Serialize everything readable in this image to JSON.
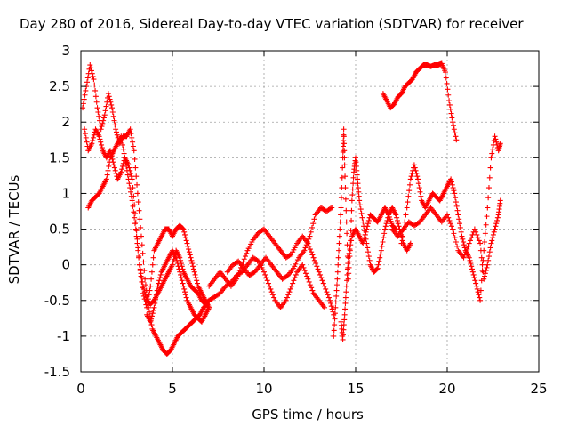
{
  "chart_data": {
    "type": "scatter",
    "title": "Day 280 of 2016, Sidereal Day-to-day VTEC variation (SDTVAR) for receiver",
    "xlabel": "GPS time / hours",
    "ylabel": "SDTVAR / TECUs",
    "xlim": [
      0,
      25
    ],
    "ylim": [
      -1.5,
      3
    ],
    "xticks": [
      "0",
      "5",
      "10",
      "15",
      "20",
      "25"
    ],
    "yticks": [
      "-1.5",
      "-1",
      "-0.5",
      "0",
      "0.5",
      "1",
      "1.5",
      "2",
      "2.5",
      "3"
    ],
    "grid": true,
    "marker": "+",
    "color": "#ff0000",
    "series": [
      {
        "values": [
          [
            0.1,
            2.2
          ],
          [
            0.3,
            2.5
          ],
          [
            0.5,
            2.8
          ],
          [
            0.7,
            2.6
          ],
          [
            0.9,
            2.2
          ],
          [
            1.1,
            1.9
          ],
          [
            1.3,
            2.1
          ],
          [
            1.5,
            2.4
          ],
          [
            1.7,
            2.2
          ],
          [
            1.9,
            1.9
          ],
          [
            2.1,
            1.7
          ],
          [
            2.3,
            1.8
          ],
          [
            2.5,
            1.8
          ],
          [
            2.7,
            1.9
          ],
          [
            2.9,
            1.6
          ],
          [
            3.1,
            1.0
          ],
          [
            3.3,
            0.4
          ],
          [
            3.5,
            -0.2
          ],
          [
            3.7,
            -0.6
          ],
          [
            3.9,
            -0.9
          ],
          [
            4.1,
            -1.0
          ],
          [
            4.3,
            -1.1
          ],
          [
            4.5,
            -1.2
          ],
          [
            4.7,
            -1.25
          ],
          [
            4.9,
            -1.2
          ],
          [
            5.1,
            -1.1
          ],
          [
            5.3,
            -1.0
          ],
          [
            5.5,
            -0.95
          ],
          [
            5.7,
            -0.9
          ],
          [
            5.9,
            -0.85
          ],
          [
            6.1,
            -0.8
          ],
          [
            6.3,
            -0.75
          ],
          [
            6.5,
            -0.7
          ],
          [
            6.7,
            -0.6
          ],
          [
            6.9,
            -0.55
          ]
        ]
      },
      {
        "values": [
          [
            0.2,
            1.9
          ],
          [
            0.4,
            1.6
          ],
          [
            0.6,
            1.7
          ],
          [
            0.8,
            1.9
          ],
          [
            1.0,
            1.8
          ],
          [
            1.2,
            1.6
          ],
          [
            1.4,
            1.5
          ],
          [
            1.6,
            1.6
          ],
          [
            1.8,
            1.4
          ],
          [
            2.0,
            1.2
          ],
          [
            2.2,
            1.3
          ],
          [
            2.4,
            1.5
          ],
          [
            2.6,
            1.4
          ],
          [
            2.8,
            1.2
          ],
          [
            3.0,
            0.6
          ],
          [
            3.2,
            0.0
          ],
          [
            3.4,
            -0.4
          ],
          [
            3.6,
            -0.6
          ],
          [
            3.8,
            -0.3
          ],
          [
            4.0,
            0.2
          ],
          [
            4.2,
            0.3
          ],
          [
            4.4,
            0.4
          ],
          [
            4.6,
            0.5
          ],
          [
            4.8,
            0.5
          ],
          [
            5.0,
            0.4
          ],
          [
            5.2,
            0.5
          ],
          [
            5.4,
            0.55
          ],
          [
            5.6,
            0.5
          ],
          [
            5.8,
            0.3
          ],
          [
            6.0,
            0.1
          ],
          [
            6.2,
            -0.1
          ],
          [
            6.4,
            -0.3
          ],
          [
            6.6,
            -0.4
          ],
          [
            6.8,
            -0.5
          ],
          [
            7.0,
            -0.6
          ]
        ]
      },
      {
        "values": [
          [
            0.4,
            0.8
          ],
          [
            0.6,
            0.9
          ],
          [
            0.8,
            0.95
          ],
          [
            1.0,
            1.0
          ],
          [
            1.2,
            1.1
          ],
          [
            1.4,
            1.2
          ],
          [
            1.6,
            1.5
          ],
          [
            1.8,
            1.6
          ],
          [
            2.0,
            1.7
          ],
          [
            2.2,
            1.8
          ],
          [
            2.4,
            1.5
          ],
          [
            2.6,
            1.2
          ],
          [
            2.8,
            0.9
          ],
          [
            3.0,
            0.5
          ],
          [
            3.2,
            0.0
          ],
          [
            3.4,
            -0.3
          ],
          [
            3.6,
            -0.5
          ],
          [
            3.8,
            -0.55
          ],
          [
            4.0,
            -0.5
          ],
          [
            4.2,
            -0.4
          ],
          [
            4.4,
            -0.3
          ],
          [
            4.6,
            -0.2
          ],
          [
            4.8,
            -0.1
          ],
          [
            5.0,
            0.0
          ],
          [
            5.2,
            0.2
          ],
          [
            5.4,
            0.1
          ],
          [
            5.6,
            -0.1
          ],
          [
            5.8,
            -0.2
          ],
          [
            6.0,
            -0.3
          ],
          [
            6.2,
            -0.35
          ],
          [
            6.4,
            -0.4
          ],
          [
            6.6,
            -0.5
          ],
          [
            6.8,
            -0.55
          ],
          [
            7.0,
            -0.5
          ]
        ]
      },
      {
        "values": [
          [
            3.6,
            -0.7
          ],
          [
            3.8,
            -0.8
          ],
          [
            4.0,
            -0.6
          ],
          [
            4.2,
            -0.3
          ],
          [
            4.4,
            -0.1
          ],
          [
            4.6,
            0.0
          ],
          [
            4.8,
            0.1
          ],
          [
            5.0,
            0.2
          ],
          [
            5.2,
            0.1
          ],
          [
            5.4,
            -0.1
          ],
          [
            5.6,
            -0.3
          ],
          [
            5.8,
            -0.5
          ],
          [
            6.0,
            -0.6
          ],
          [
            6.2,
            -0.7
          ],
          [
            6.4,
            -0.75
          ],
          [
            6.6,
            -0.8
          ],
          [
            6.8,
            -0.7
          ],
          [
            7.0,
            -0.6
          ]
        ]
      },
      {
        "values": [
          [
            7.0,
            -0.3
          ],
          [
            7.3,
            -0.2
          ],
          [
            7.6,
            -0.1
          ],
          [
            7.9,
            -0.2
          ],
          [
            8.2,
            -0.3
          ],
          [
            8.5,
            -0.2
          ],
          [
            8.8,
            0.0
          ],
          [
            9.1,
            0.2
          ],
          [
            9.4,
            0.35
          ],
          [
            9.7,
            0.45
          ],
          [
            10.0,
            0.5
          ],
          [
            10.3,
            0.4
          ],
          [
            10.6,
            0.3
          ],
          [
            10.9,
            0.2
          ],
          [
            11.2,
            0.1
          ],
          [
            11.5,
            0.15
          ],
          [
            11.8,
            0.3
          ],
          [
            12.1,
            0.4
          ],
          [
            12.4,
            0.3
          ],
          [
            12.7,
            0.1
          ],
          [
            13.0,
            -0.1
          ],
          [
            13.3,
            -0.3
          ],
          [
            13.6,
            -0.5
          ],
          [
            13.8,
            -0.7
          ]
        ]
      },
      {
        "values": [
          [
            7.0,
            -0.5
          ],
          [
            7.3,
            -0.45
          ],
          [
            7.6,
            -0.4
          ],
          [
            7.9,
            -0.3
          ],
          [
            8.2,
            -0.25
          ],
          [
            8.5,
            -0.15
          ],
          [
            8.8,
            -0.1
          ],
          [
            9.1,
            0.0
          ],
          [
            9.4,
            0.1
          ],
          [
            9.7,
            0.05
          ],
          [
            10.0,
            -0.1
          ],
          [
            10.3,
            -0.3
          ],
          [
            10.6,
            -0.5
          ],
          [
            10.9,
            -0.6
          ],
          [
            11.2,
            -0.5
          ],
          [
            11.5,
            -0.3
          ],
          [
            11.8,
            -0.1
          ],
          [
            12.1,
            0.0
          ],
          [
            12.4,
            -0.2
          ],
          [
            12.7,
            -0.4
          ],
          [
            13.0,
            -0.5
          ],
          [
            13.3,
            -0.6
          ]
        ]
      },
      {
        "values": [
          [
            8.0,
            -0.1
          ],
          [
            8.3,
            0.0
          ],
          [
            8.6,
            0.05
          ],
          [
            8.9,
            -0.05
          ],
          [
            9.2,
            -0.15
          ],
          [
            9.5,
            -0.1
          ],
          [
            9.8,
            0.0
          ],
          [
            10.1,
            0.1
          ],
          [
            10.4,
            0.0
          ],
          [
            10.7,
            -0.1
          ],
          [
            11.0,
            -0.2
          ],
          [
            11.3,
            -0.15
          ],
          [
            11.6,
            -0.05
          ],
          [
            11.9,
            0.1
          ],
          [
            12.2,
            0.2
          ],
          [
            12.5,
            0.4
          ],
          [
            12.8,
            0.7
          ],
          [
            13.1,
            0.8
          ],
          [
            13.4,
            0.75
          ],
          [
            13.7,
            0.8
          ]
        ]
      },
      {
        "values": [
          [
            13.8,
            -1.0
          ],
          [
            13.9,
            -0.6
          ],
          [
            14.0,
            -0.2
          ],
          [
            14.1,
            0.3
          ],
          [
            14.2,
            0.8
          ],
          [
            14.3,
            1.5
          ],
          [
            14.35,
            1.9
          ],
          [
            14.4,
            1.4
          ],
          [
            14.5,
            0.6
          ],
          [
            14.6,
            -0.2
          ],
          [
            14.7,
            0.2
          ],
          [
            14.8,
            0.9
          ],
          [
            14.9,
            1.3
          ],
          [
            15.0,
            1.5
          ],
          [
            15.1,
            1.2
          ],
          [
            15.2,
            0.9
          ],
          [
            15.4,
            0.6
          ],
          [
            15.6,
            0.3
          ],
          [
            15.8,
            0.0
          ],
          [
            16.0,
            -0.1
          ],
          [
            16.2,
            -0.05
          ],
          [
            16.4,
            0.2
          ],
          [
            16.6,
            0.5
          ],
          [
            16.8,
            0.7
          ],
          [
            17.0,
            0.8
          ],
          [
            17.2,
            0.7
          ],
          [
            17.4,
            0.5
          ],
          [
            17.6,
            0.3
          ],
          [
            17.8,
            0.2
          ],
          [
            18.0,
            0.3
          ]
        ]
      },
      {
        "values": [
          [
            14.2,
            -0.8
          ],
          [
            14.3,
            -1.05
          ],
          [
            14.4,
            -0.7
          ],
          [
            14.5,
            -0.3
          ],
          [
            14.6,
            0.1
          ],
          [
            14.8,
            0.4
          ],
          [
            15.0,
            0.5
          ],
          [
            15.2,
            0.4
          ],
          [
            15.4,
            0.3
          ],
          [
            15.6,
            0.5
          ],
          [
            15.8,
            0.7
          ],
          [
            16.0,
            0.65
          ],
          [
            16.2,
            0.6
          ],
          [
            16.4,
            0.7
          ],
          [
            16.6,
            0.8
          ],
          [
            16.8,
            0.7
          ],
          [
            17.0,
            0.55
          ],
          [
            17.2,
            0.5
          ]
        ]
      },
      {
        "values": [
          [
            16.5,
            2.4
          ],
          [
            16.7,
            2.3
          ],
          [
            16.9,
            2.2
          ],
          [
            17.1,
            2.25
          ],
          [
            17.3,
            2.35
          ],
          [
            17.5,
            2.4
          ],
          [
            17.7,
            2.5
          ],
          [
            17.9,
            2.55
          ],
          [
            18.1,
            2.6
          ],
          [
            18.3,
            2.7
          ],
          [
            18.5,
            2.75
          ],
          [
            18.7,
            2.8
          ],
          [
            18.9,
            2.8
          ],
          [
            19.1,
            2.78
          ],
          [
            19.3,
            2.8
          ],
          [
            19.5,
            2.8
          ],
          [
            19.7,
            2.82
          ],
          [
            19.9,
            2.7
          ],
          [
            20.1,
            2.3
          ],
          [
            20.3,
            2.0
          ],
          [
            20.5,
            1.75
          ]
        ]
      },
      {
        "values": [
          [
            17.5,
            0.3
          ],
          [
            17.8,
            0.8
          ],
          [
            18.0,
            1.2
          ],
          [
            18.2,
            1.4
          ],
          [
            18.4,
            1.2
          ],
          [
            18.6,
            0.9
          ],
          [
            18.8,
            0.8
          ],
          [
            19.0,
            0.9
          ],
          [
            19.2,
            1.0
          ],
          [
            19.4,
            0.95
          ],
          [
            19.6,
            0.9
          ],
          [
            19.8,
            1.0
          ],
          [
            20.0,
            1.1
          ],
          [
            20.2,
            1.2
          ],
          [
            20.4,
            1.0
          ],
          [
            20.6,
            0.7
          ],
          [
            20.8,
            0.4
          ],
          [
            21.0,
            0.2
          ],
          [
            21.2,
            0.1
          ],
          [
            21.4,
            -0.1
          ],
          [
            21.6,
            -0.3
          ],
          [
            21.8,
            -0.5
          ],
          [
            22.0,
            0.2
          ],
          [
            22.2,
            0.8
          ],
          [
            22.4,
            1.5
          ],
          [
            22.6,
            1.8
          ],
          [
            22.8,
            1.6
          ],
          [
            22.9,
            1.7
          ]
        ]
      },
      {
        "values": [
          [
            17.0,
            0.5
          ],
          [
            17.3,
            0.4
          ],
          [
            17.6,
            0.5
          ],
          [
            17.9,
            0.6
          ],
          [
            18.2,
            0.55
          ],
          [
            18.5,
            0.6
          ],
          [
            18.8,
            0.7
          ],
          [
            19.1,
            0.8
          ],
          [
            19.4,
            0.7
          ],
          [
            19.7,
            0.6
          ],
          [
            20.0,
            0.7
          ],
          [
            20.3,
            0.5
          ],
          [
            20.6,
            0.2
          ],
          [
            20.9,
            0.1
          ],
          [
            21.2,
            0.3
          ],
          [
            21.5,
            0.5
          ],
          [
            21.8,
            0.3
          ],
          [
            22.0,
            -0.2
          ],
          [
            22.2,
            0.0
          ],
          [
            22.4,
            0.3
          ],
          [
            22.6,
            0.5
          ],
          [
            22.8,
            0.7
          ],
          [
            22.9,
            0.9
          ]
        ]
      }
    ]
  }
}
